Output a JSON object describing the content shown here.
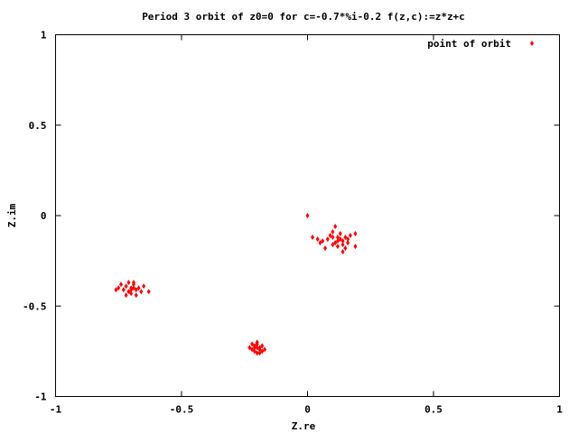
{
  "chart_data": {
    "type": "scatter",
    "title": "Period 3 orbit of z0=0 for c=-0.7*%i-0.2 f(z,c):=z*z+c",
    "xlabel": "Z.re",
    "ylabel": "Z.im",
    "xlim": [
      -1,
      1
    ],
    "ylim": [
      -1,
      1
    ],
    "grid": false,
    "legend_position": "top-right",
    "x_ticks": [
      "-1",
      "-0.5",
      "0",
      "0.5",
      "1"
    ],
    "y_ticks": [
      "1",
      "0.5",
      "0",
      "-0.5",
      "-1"
    ],
    "series": [
      {
        "name": "point of orbit",
        "color": "#ff0000",
        "marker": "diamond",
        "points": [
          {
            "x": 0.0,
            "y": 0.0
          },
          {
            "x": 0.12,
            "y": -0.14
          },
          {
            "x": 0.1,
            "y": -0.12
          },
          {
            "x": 0.14,
            "y": -0.16
          },
          {
            "x": 0.13,
            "y": -0.13
          },
          {
            "x": 0.11,
            "y": -0.15
          },
          {
            "x": 0.15,
            "y": -0.12
          },
          {
            "x": 0.09,
            "y": -0.11
          },
          {
            "x": 0.16,
            "y": -0.15
          },
          {
            "x": 0.12,
            "y": -0.17
          },
          {
            "x": 0.08,
            "y": -0.13
          },
          {
            "x": 0.17,
            "y": -0.11
          },
          {
            "x": 0.19,
            "y": -0.1
          },
          {
            "x": 0.19,
            "y": -0.17
          },
          {
            "x": 0.11,
            "y": -0.06
          },
          {
            "x": 0.07,
            "y": -0.18
          },
          {
            "x": 0.05,
            "y": -0.15
          },
          {
            "x": 0.04,
            "y": -0.13
          },
          {
            "x": 0.14,
            "y": -0.2
          },
          {
            "x": 0.1,
            "y": -0.09
          },
          {
            "x": 0.13,
            "y": -0.1
          },
          {
            "x": 0.15,
            "y": -0.18
          },
          {
            "x": 0.02,
            "y": -0.12
          },
          {
            "x": 0.06,
            "y": -0.14
          },
          {
            "x": 0.16,
            "y": -0.13
          },
          {
            "x": 0.12,
            "y": -0.12
          },
          {
            "x": 0.1,
            "y": -0.16
          },
          {
            "x": 0.14,
            "y": -0.14
          },
          {
            "x": -0.7,
            "y": -0.4
          },
          {
            "x": -0.72,
            "y": -0.39
          },
          {
            "x": -0.68,
            "y": -0.41
          },
          {
            "x": -0.71,
            "y": -0.42
          },
          {
            "x": -0.69,
            "y": -0.38
          },
          {
            "x": -0.73,
            "y": -0.41
          },
          {
            "x": -0.67,
            "y": -0.4
          },
          {
            "x": -0.74,
            "y": -0.38
          },
          {
            "x": -0.66,
            "y": -0.42
          },
          {
            "x": -0.72,
            "y": -0.44
          },
          {
            "x": -0.69,
            "y": -0.37
          },
          {
            "x": -0.75,
            "y": -0.4
          },
          {
            "x": -0.65,
            "y": -0.39
          },
          {
            "x": -0.63,
            "y": -0.42
          },
          {
            "x": -0.76,
            "y": -0.41
          },
          {
            "x": -0.7,
            "y": -0.43
          },
          {
            "x": -0.71,
            "y": -0.37
          },
          {
            "x": -0.68,
            "y": -0.44
          },
          {
            "x": -0.7,
            "y": -0.41
          },
          {
            "x": -0.69,
            "y": -0.4
          },
          {
            "x": -0.2,
            "y": -0.73
          },
          {
            "x": -0.21,
            "y": -0.72
          },
          {
            "x": -0.19,
            "y": -0.74
          },
          {
            "x": -0.22,
            "y": -0.74
          },
          {
            "x": -0.18,
            "y": -0.72
          },
          {
            "x": -0.2,
            "y": -0.71
          },
          {
            "x": -0.21,
            "y": -0.75
          },
          {
            "x": -0.19,
            "y": -0.76
          },
          {
            "x": -0.23,
            "y": -0.73
          },
          {
            "x": -0.17,
            "y": -0.74
          },
          {
            "x": -0.2,
            "y": -0.7
          },
          {
            "x": -0.22,
            "y": -0.71
          },
          {
            "x": -0.18,
            "y": -0.75
          },
          {
            "x": -0.2,
            "y": -0.76
          },
          {
            "x": -0.21,
            "y": -0.73
          },
          {
            "x": -0.19,
            "y": -0.73
          }
        ]
      }
    ]
  }
}
